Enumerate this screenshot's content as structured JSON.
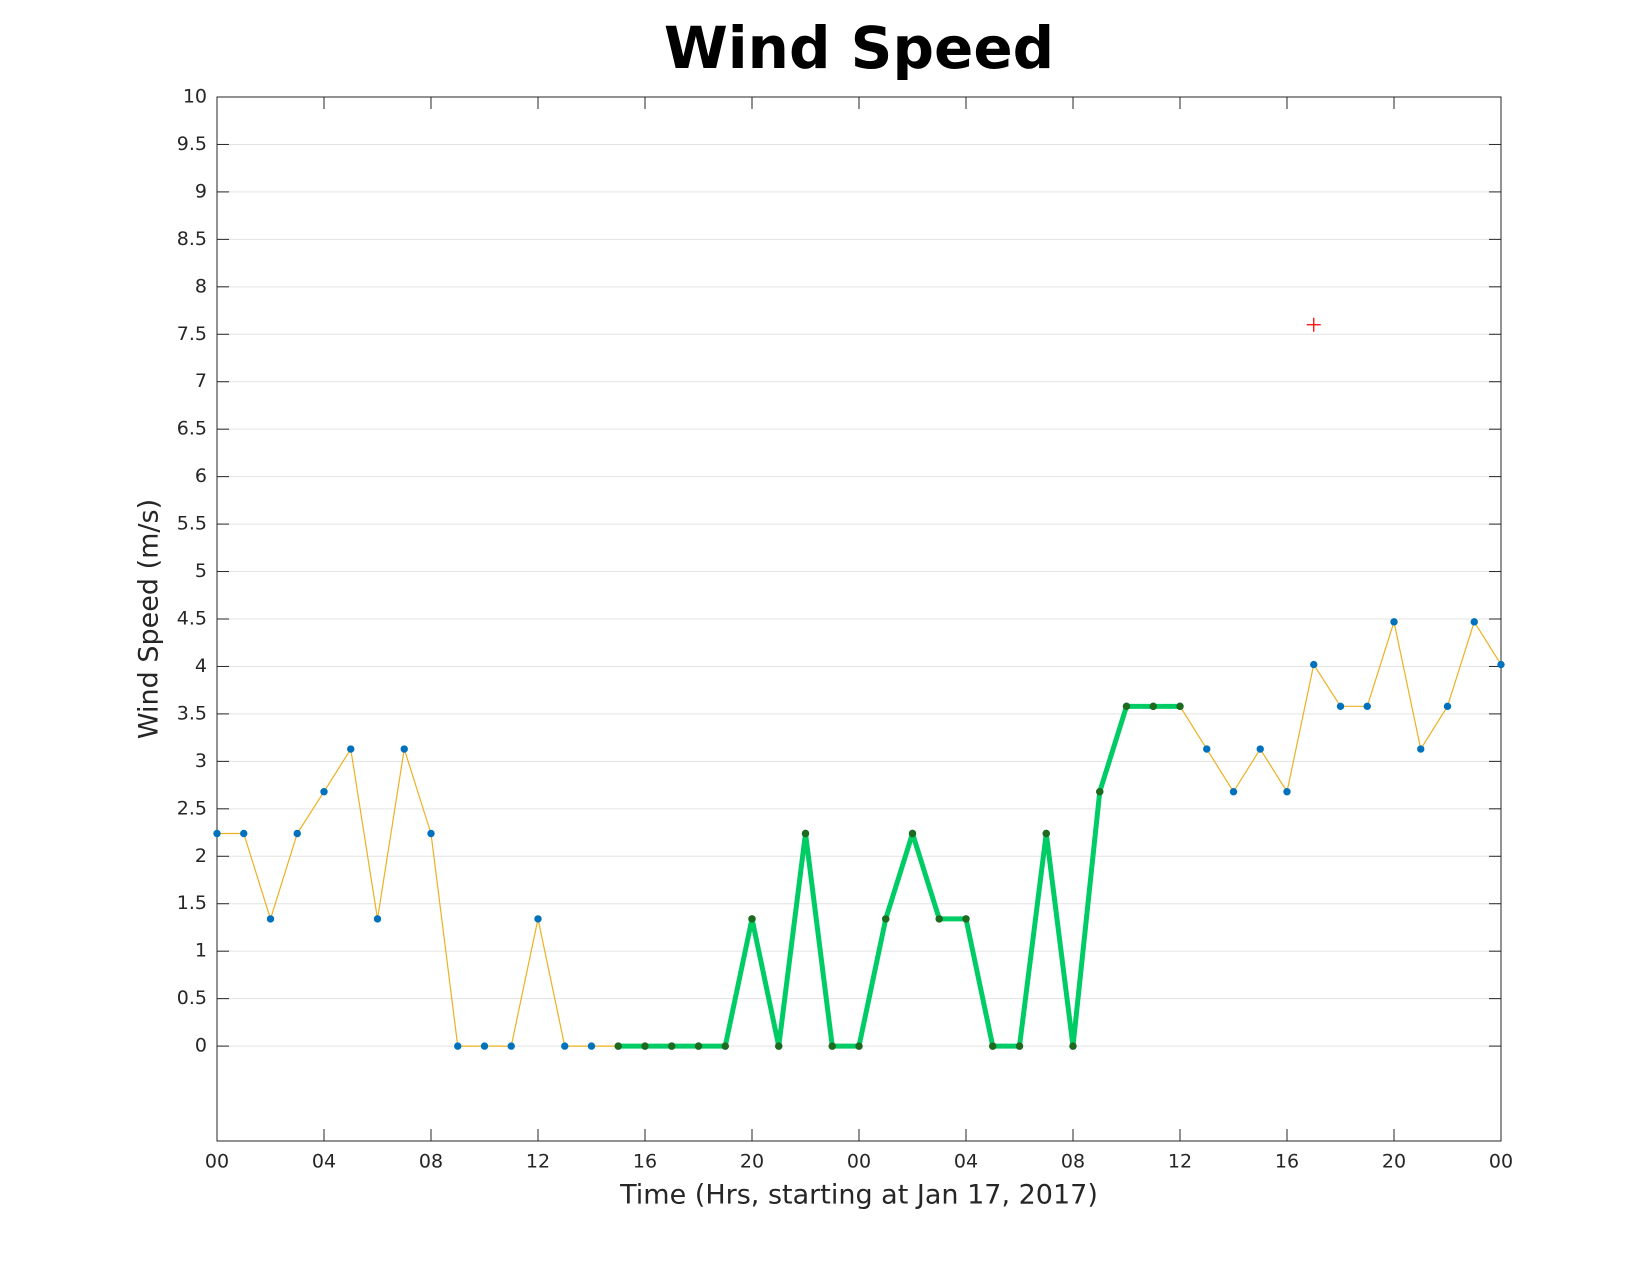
{
  "chart_data": {
    "type": "line",
    "title": "Wind Speed",
    "xlabel": "Time (Hrs, starting at Jan 17, 2017)",
    "ylabel": "Wind Speed (m/s)",
    "x": [
      0,
      1,
      2,
      3,
      4,
      5,
      6,
      7,
      8,
      9,
      10,
      11,
      12,
      13,
      14,
      15,
      16,
      17,
      18,
      19,
      20,
      21,
      22,
      23,
      24,
      25,
      26,
      27,
      28,
      29,
      30,
      31,
      32,
      33,
      34,
      35,
      36,
      37,
      38,
      39,
      40,
      41,
      42,
      43,
      44,
      45,
      46,
      47,
      48
    ],
    "series": [
      {
        "color": "#EDB120",
        "marker_color": "#0072BD",
        "width": 1.2,
        "values": [
          2.24,
          2.24,
          1.34,
          2.24,
          2.68,
          3.13,
          1.34,
          3.13,
          2.24,
          0,
          0,
          0,
          1.34,
          0,
          0,
          0,
          0,
          0,
          0,
          0,
          1.34,
          0,
          2.24,
          0,
          0,
          1.34,
          2.24,
          1.34,
          1.34,
          0,
          0,
          2.24,
          0,
          2.68,
          3.58,
          3.58,
          3.58,
          3.13,
          2.68,
          3.13,
          2.68,
          4.02,
          3.58,
          3.58,
          4.47,
          3.13,
          3.58,
          4.47,
          4.02
        ]
      },
      {
        "color": "#00CC66",
        "marker_color": "#1E6B1E",
        "width": 5,
        "values": [
          null,
          null,
          null,
          null,
          null,
          null,
          null,
          null,
          null,
          null,
          null,
          null,
          null,
          null,
          null,
          0,
          0,
          0,
          0,
          0,
          1.34,
          0,
          2.24,
          0,
          0,
          1.34,
          2.24,
          1.34,
          1.34,
          0,
          0,
          2.24,
          0,
          2.68,
          3.58,
          3.58,
          3.58,
          null,
          null,
          null,
          null,
          null,
          null,
          null,
          null,
          null,
          null,
          null,
          null
        ]
      }
    ],
    "point": {
      "x": 41,
      "y": 7.6,
      "color": "#FF0000"
    },
    "xlim": [
      0,
      48
    ],
    "xticks": [
      {
        "value": 0,
        "label": "00"
      },
      {
        "value": 4,
        "label": "04"
      },
      {
        "value": 8,
        "label": "08"
      },
      {
        "value": 12,
        "label": "12"
      },
      {
        "value": 16,
        "label": "16"
      },
      {
        "value": 20,
        "label": "20"
      },
      {
        "value": 24,
        "label": "00"
      },
      {
        "value": 28,
        "label": "04"
      },
      {
        "value": 32,
        "label": "08"
      },
      {
        "value": 36,
        "label": "12"
      },
      {
        "value": 40,
        "label": "16"
      },
      {
        "value": 44,
        "label": "20"
      },
      {
        "value": 48,
        "label": "00"
      }
    ],
    "ylim": [
      -1,
      10
    ],
    "yticks": [
      0,
      0.5,
      1,
      1.5,
      2,
      2.5,
      3,
      3.5,
      4,
      4.5,
      5,
      5.5,
      6,
      6.5,
      7,
      7.5,
      8,
      8.5,
      9,
      9.5,
      10
    ],
    "grid": true
  }
}
